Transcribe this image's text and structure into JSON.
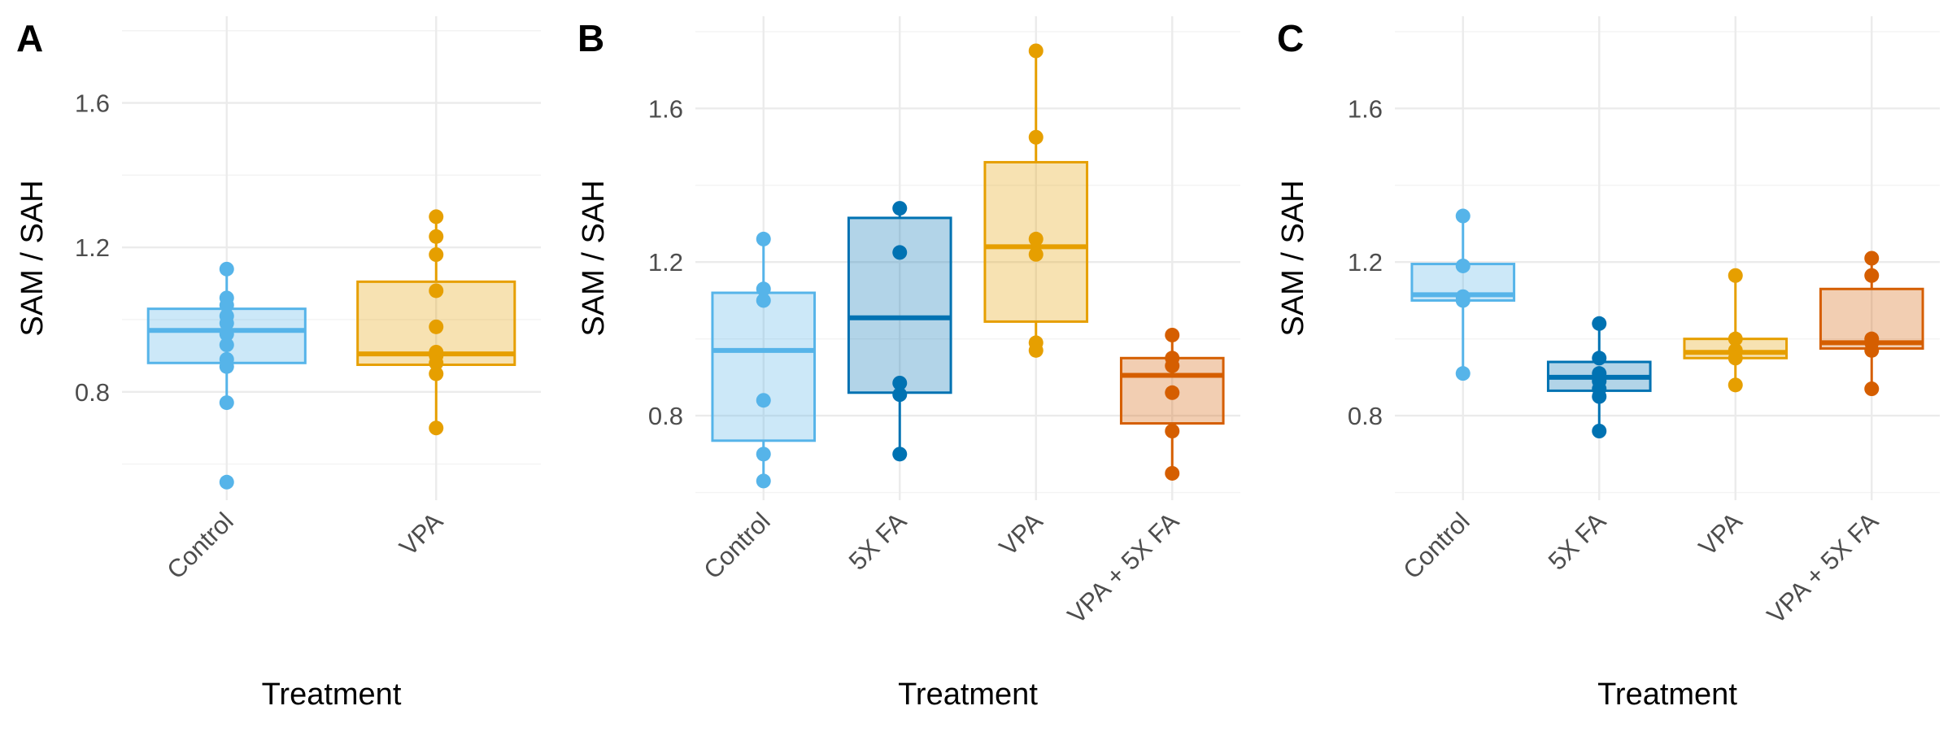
{
  "chart_data": [
    {
      "type": "box",
      "panel_label": "A",
      "xlabel": "Treatment",
      "ylabel": "SAM / SAH",
      "ylim": [
        0.5,
        1.84
      ],
      "yticks": [
        0.8,
        1.2,
        1.6
      ],
      "grid": true,
      "categories": [
        "Control",
        "VPA"
      ],
      "colors": [
        "#56B4E9",
        "#E69F00"
      ],
      "boxes": [
        {
          "category": "Control",
          "min": 0.77,
          "q1": 0.88,
          "median": 0.97,
          "q3": 1.03,
          "max": 1.15
        },
        {
          "category": "VPA",
          "min": 0.7,
          "q1": 0.875,
          "median": 0.905,
          "q3": 1.105,
          "max": 1.285
        }
      ],
      "points": [
        {
          "category": "Control",
          "values": [
            1.14,
            1.06,
            1.04,
            1.01,
            0.99,
            0.96,
            0.93,
            0.89,
            0.87,
            0.77,
            0.55
          ]
        },
        {
          "category": "VPA",
          "values": [
            1.285,
            1.23,
            1.18,
            1.08,
            0.98,
            0.91,
            0.9,
            0.88,
            0.85,
            0.7
          ]
        }
      ]
    },
    {
      "type": "box",
      "panel_label": "B",
      "xlabel": "Treatment",
      "ylabel": "SAM / SAH",
      "ylim": [
        0.58,
        1.84
      ],
      "yticks": [
        0.8,
        1.2,
        1.6
      ],
      "grid": true,
      "categories": [
        "Control",
        "5X FA",
        "VPA",
        "VPA + 5X FA"
      ],
      "colors": [
        "#56B4E9",
        "#0072B2",
        "#E69F00",
        "#D55E00"
      ],
      "boxes": [
        {
          "category": "Control",
          "min": 0.63,
          "q1": 0.735,
          "median": 0.97,
          "q3": 1.12,
          "max": 1.26
        },
        {
          "category": "5X FA",
          "min": 0.7,
          "q1": 0.86,
          "median": 1.055,
          "q3": 1.315,
          "max": 1.34
        },
        {
          "category": "VPA",
          "min": 0.97,
          "q1": 1.045,
          "median": 1.24,
          "q3": 1.46,
          "max": 1.75
        },
        {
          "category": "VPA + 5X FA",
          "min": 0.65,
          "q1": 0.78,
          "median": 0.905,
          "q3": 0.95,
          "max": 1.01
        }
      ],
      "points": [
        {
          "category": "Control",
          "values": [
            1.26,
            1.13,
            1.1,
            0.84,
            0.7,
            0.63
          ]
        },
        {
          "category": "5X FA",
          "values": [
            1.34,
            1.225,
            0.885,
            0.855,
            0.7
          ]
        },
        {
          "category": "VPA",
          "values": [
            1.75,
            1.525,
            1.26,
            1.22,
            0.99,
            0.97
          ]
        },
        {
          "category": "VPA + 5X FA",
          "values": [
            1.01,
            0.95,
            0.93,
            0.86,
            0.76,
            0.65
          ]
        }
      ]
    },
    {
      "type": "box",
      "panel_label": "C",
      "xlabel": "Treatment",
      "ylabel": "SAM / SAH",
      "ylim": [
        0.58,
        1.84
      ],
      "yticks": [
        0.8,
        1.2,
        1.6
      ],
      "grid": true,
      "categories": [
        "Control",
        "5X FA",
        "VPA",
        "VPA + 5X FA"
      ],
      "colors": [
        "#56B4E9",
        "#0072B2",
        "#E69F00",
        "#D55E00"
      ],
      "boxes": [
        {
          "category": "Control",
          "min": 0.91,
          "q1": 1.1,
          "median": 1.115,
          "q3": 1.195,
          "max": 1.32
        },
        {
          "category": "5X FA",
          "min": 0.76,
          "q1": 0.865,
          "median": 0.9,
          "q3": 0.94,
          "max": 1.04
        },
        {
          "category": "VPA",
          "min": 0.88,
          "q1": 0.95,
          "median": 0.965,
          "q3": 1.0,
          "max": 1.165
        },
        {
          "category": "VPA + 5X FA",
          "min": 0.87,
          "q1": 0.975,
          "median": 0.99,
          "q3": 1.13,
          "max": 1.21
        }
      ],
      "points": [
        {
          "category": "Control",
          "values": [
            1.32,
            1.19,
            1.11,
            1.1,
            0.91
          ]
        },
        {
          "category": "5X FA",
          "values": [
            1.04,
            0.95,
            0.91,
            0.89,
            0.87,
            0.85,
            0.76
          ]
        },
        {
          "category": "VPA",
          "values": [
            1.165,
            1.0,
            0.97,
            0.95,
            0.88
          ]
        },
        {
          "category": "VPA + 5X FA",
          "values": [
            1.21,
            1.165,
            1.0,
            0.99,
            0.97,
            0.87
          ]
        }
      ]
    }
  ]
}
